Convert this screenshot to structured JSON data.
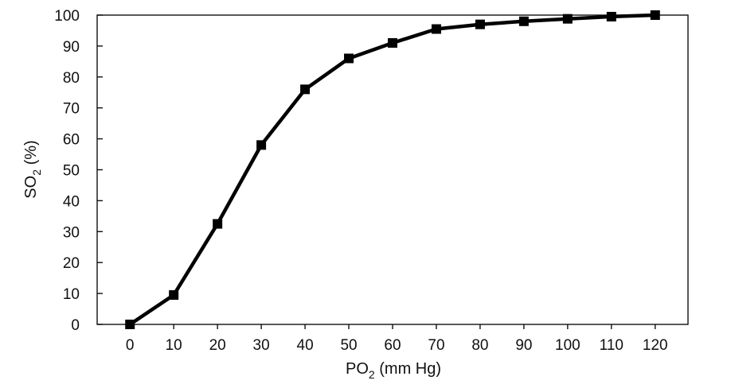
{
  "chart_data": {
    "type": "line",
    "title": "",
    "xlabel": {
      "main": "PO",
      "sub": "2",
      "rest": " (mm Hg)"
    },
    "ylabel": {
      "main": "SO",
      "sub": "2",
      "rest": " (%)"
    },
    "x_ticks": [
      "0",
      "10",
      "20",
      "30",
      "40",
      "50",
      "60",
      "70",
      "80",
      "90",
      "100",
      "110",
      "120"
    ],
    "y_ticks": [
      "0",
      "10",
      "20",
      "30",
      "40",
      "50",
      "60",
      "70",
      "80",
      "90",
      "100"
    ],
    "xlim": [
      -7.5,
      127.5
    ],
    "ylim": [
      0,
      100
    ],
    "grid": false,
    "legend": "none",
    "series_color": "#000000",
    "marker": "square",
    "x": [
      0,
      10,
      20,
      30,
      40,
      50,
      60,
      70,
      80,
      90,
      100,
      110,
      120
    ],
    "y": [
      0,
      9.5,
      32.5,
      58,
      76,
      86,
      91,
      95.5,
      97,
      98,
      98.8,
      99.5,
      100
    ]
  }
}
